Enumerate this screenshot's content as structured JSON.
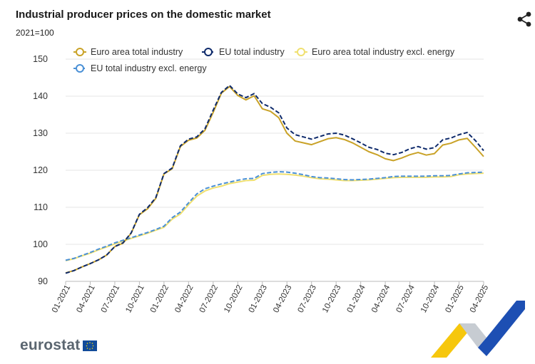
{
  "header": {
    "title": "Industrial producer prices on the domestic market",
    "subtitle": "2021=100"
  },
  "logo": {
    "text": "eurostat"
  },
  "icons": {
    "share": "share-icon",
    "flag": "eu-flag-icon"
  },
  "chart_data": {
    "type": "line",
    "title": "Industrial producer prices on the domestic market",
    "subtitle": "2021=100",
    "xlabel": "",
    "ylabel": "",
    "ylim": [
      90,
      150
    ],
    "yticks": [
      90,
      100,
      110,
      120,
      130,
      140,
      150
    ],
    "grid": true,
    "legend_position": "top",
    "x": [
      "01-2021",
      "02-2021",
      "03-2021",
      "04-2021",
      "05-2021",
      "06-2021",
      "07-2021",
      "08-2021",
      "09-2021",
      "10-2021",
      "11-2021",
      "12-2021",
      "01-2022",
      "02-2022",
      "03-2022",
      "04-2022",
      "05-2022",
      "06-2022",
      "07-2022",
      "08-2022",
      "09-2022",
      "10-2022",
      "11-2022",
      "12-2022",
      "01-2023",
      "02-2023",
      "03-2023",
      "04-2023",
      "05-2023",
      "06-2023",
      "07-2023",
      "08-2023",
      "09-2023",
      "10-2023",
      "11-2023",
      "12-2023",
      "01-2024",
      "02-2024",
      "03-2024",
      "04-2024",
      "05-2024",
      "06-2024",
      "07-2024",
      "08-2024",
      "09-2024",
      "10-2024",
      "11-2024",
      "12-2024",
      "01-2025",
      "02-2025",
      "03-2025",
      "04-2025"
    ],
    "xticks": [
      "01-2021",
      "04-2021",
      "07-2021",
      "10-2021",
      "01-2022",
      "04-2022",
      "07-2022",
      "10-2022",
      "01-2023",
      "04-2023",
      "07-2023",
      "10-2023",
      "01-2024",
      "04-2024",
      "07-2024",
      "10-2024",
      "01-2025",
      "04-2025"
    ],
    "series": [
      {
        "name": "Euro area total industry",
        "color": "#c9a227",
        "dash": false,
        "values": [
          92.3,
          92.9,
          93.9,
          94.8,
          95.8,
          97.1,
          99.4,
          100.3,
          103.0,
          108.0,
          109.6,
          112.4,
          119.0,
          120.4,
          126.4,
          128.1,
          128.7,
          130.8,
          135.6,
          140.8,
          142.6,
          140.2,
          139.0,
          140.1,
          136.6,
          135.9,
          134.2,
          130.0,
          127.9,
          127.4,
          126.9,
          127.7,
          128.5,
          128.8,
          128.3,
          127.4,
          126.2,
          125.0,
          124.2,
          123.1,
          122.6,
          123.3,
          124.2,
          124.8,
          124.1,
          124.5,
          126.8,
          127.3,
          128.2,
          128.6,
          126.2,
          123.7
        ]
      },
      {
        "name": "EU total industry",
        "color": "#0e2a6b",
        "dash": true,
        "values": [
          92.2,
          92.9,
          93.9,
          94.8,
          95.8,
          97.1,
          99.4,
          100.4,
          103.1,
          108.1,
          109.9,
          112.6,
          119.1,
          120.6,
          126.6,
          128.4,
          129.0,
          131.2,
          136.2,
          141.0,
          142.9,
          140.6,
          139.6,
          140.7,
          138.0,
          137.0,
          135.5,
          131.4,
          129.6,
          129.0,
          128.4,
          129.1,
          129.8,
          130.0,
          129.5,
          128.5,
          127.4,
          126.2,
          125.6,
          124.6,
          124.2,
          124.8,
          125.8,
          126.4,
          125.7,
          126.1,
          128.2,
          128.7,
          129.6,
          130.2,
          128.0,
          125.3
        ]
      },
      {
        "name": "Euro area total industry excl. energy",
        "color": "#f0e070",
        "dash": false,
        "values": [
          95.6,
          96.1,
          96.9,
          97.6,
          98.5,
          99.3,
          100.1,
          100.9,
          101.6,
          102.3,
          103.0,
          103.8,
          104.6,
          106.8,
          108.2,
          110.7,
          113.0,
          114.4,
          115.2,
          115.7,
          116.4,
          116.8,
          117.2,
          117.3,
          118.6,
          118.9,
          119.0,
          118.9,
          118.7,
          118.4,
          118.0,
          117.7,
          117.6,
          117.4,
          117.2,
          117.2,
          117.3,
          117.4,
          117.6,
          117.8,
          118.0,
          118.1,
          118.1,
          118.1,
          118.1,
          118.2,
          118.2,
          118.3,
          118.8,
          119.0,
          119.1,
          119.2
        ]
      },
      {
        "name": "EU total industry excl. energy",
        "color": "#4a90d6",
        "dash": true,
        "values": [
          95.7,
          96.2,
          97.0,
          97.8,
          98.7,
          99.5,
          100.4,
          101.1,
          101.8,
          102.5,
          103.2,
          104.0,
          104.9,
          107.2,
          108.7,
          111.2,
          113.6,
          115.0,
          115.7,
          116.3,
          116.8,
          117.3,
          117.7,
          117.8,
          119.1,
          119.4,
          119.6,
          119.5,
          119.2,
          118.8,
          118.3,
          118.0,
          117.9,
          117.7,
          117.5,
          117.4,
          117.5,
          117.6,
          117.8,
          118.0,
          118.3,
          118.4,
          118.4,
          118.4,
          118.4,
          118.5,
          118.5,
          118.6,
          119.0,
          119.3,
          119.4,
          119.5
        ]
      }
    ]
  }
}
